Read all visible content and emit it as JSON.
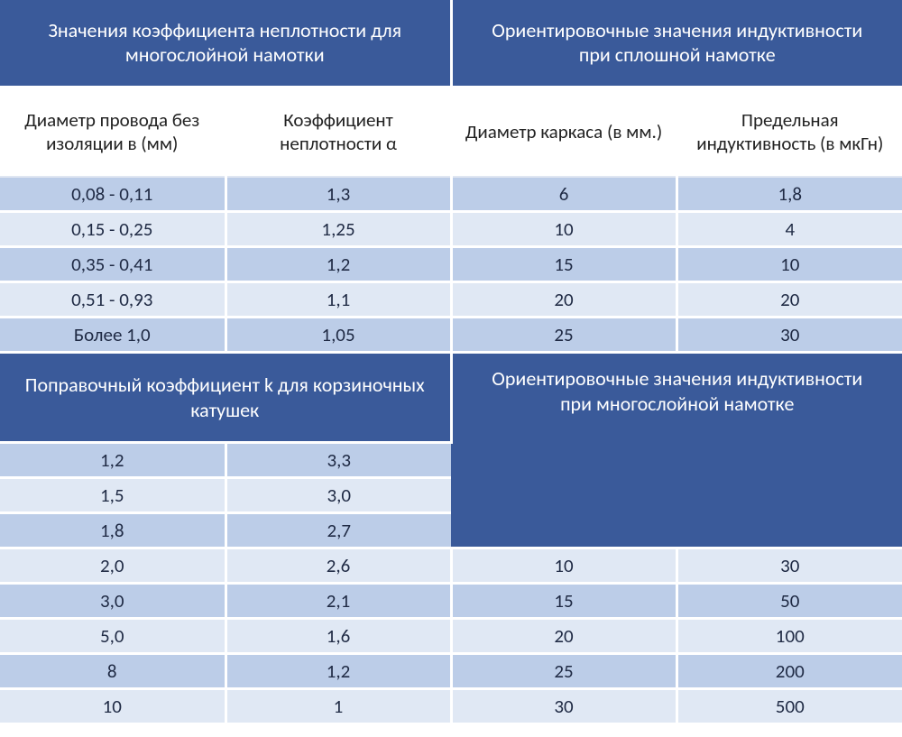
{
  "colors": {
    "header_bg": "#3a5a9a",
    "header_fg": "#ffffff",
    "row_odd": "#bccde8",
    "row_even": "#e0e8f4",
    "sub_bg": "#ffffff",
    "text": "#1f2a44"
  },
  "top": {
    "left_header": "Значения коэффициента неплотности для многослойной намотки",
    "right_header": "Ориентировочные значения индуктивности\nпри сплошной намотке",
    "sub": {
      "c1": "Диаметр провода без изоляции в (мм)",
      "c2": "Коэффициент неплотности α",
      "c3": "Диаметр каркаса (в мм.)",
      "c4": "Предельная индуктивность (в мкГн)"
    },
    "rows": [
      {
        "c1": "0,08 - 0,11",
        "c2": "1,3",
        "c3": "6",
        "c4": "1,8"
      },
      {
        "c1": "0,15 - 0,25",
        "c2": "1,25",
        "c3": "10",
        "c4": "4"
      },
      {
        "c1": "0,35 - 0,41",
        "c2": "1,2",
        "c3": "15",
        "c4": "10"
      },
      {
        "c1": "0,51 - 0,93",
        "c2": "1,1",
        "c3": "20",
        "c4": "20"
      },
      {
        "c1": "Более 1,0",
        "c2": "1,05",
        "c3": "25",
        "c4": "30"
      }
    ]
  },
  "bottom": {
    "left_header": "Поправочный коэффициент k для корзиночных катушек",
    "right_header": "Ориентировочные значения индуктивности\nпри многослойной намотке",
    "rows": [
      {
        "c1": "1,2",
        "c2": "3,3",
        "c3": "",
        "c4": ""
      },
      {
        "c1": "1,5",
        "c2": "3,0",
        "c3": "",
        "c4": ""
      },
      {
        "c1": "1,8",
        "c2": "2,7",
        "c3": "",
        "c4": ""
      },
      {
        "c1": "2,0",
        "c2": "2,6",
        "c3": "10",
        "c4": "30"
      },
      {
        "c1": "3,0",
        "c2": "2,1",
        "c3": "15",
        "c4": "50"
      },
      {
        "c1": "5,0",
        "c2": "1,6",
        "c3": "20",
        "c4": "100"
      },
      {
        "c1": "8",
        "c2": "1,2",
        "c3": "25",
        "c4": "200"
      },
      {
        "c1": "10",
        "c2": "1",
        "c3": "30",
        "c4": "500"
      }
    ]
  }
}
